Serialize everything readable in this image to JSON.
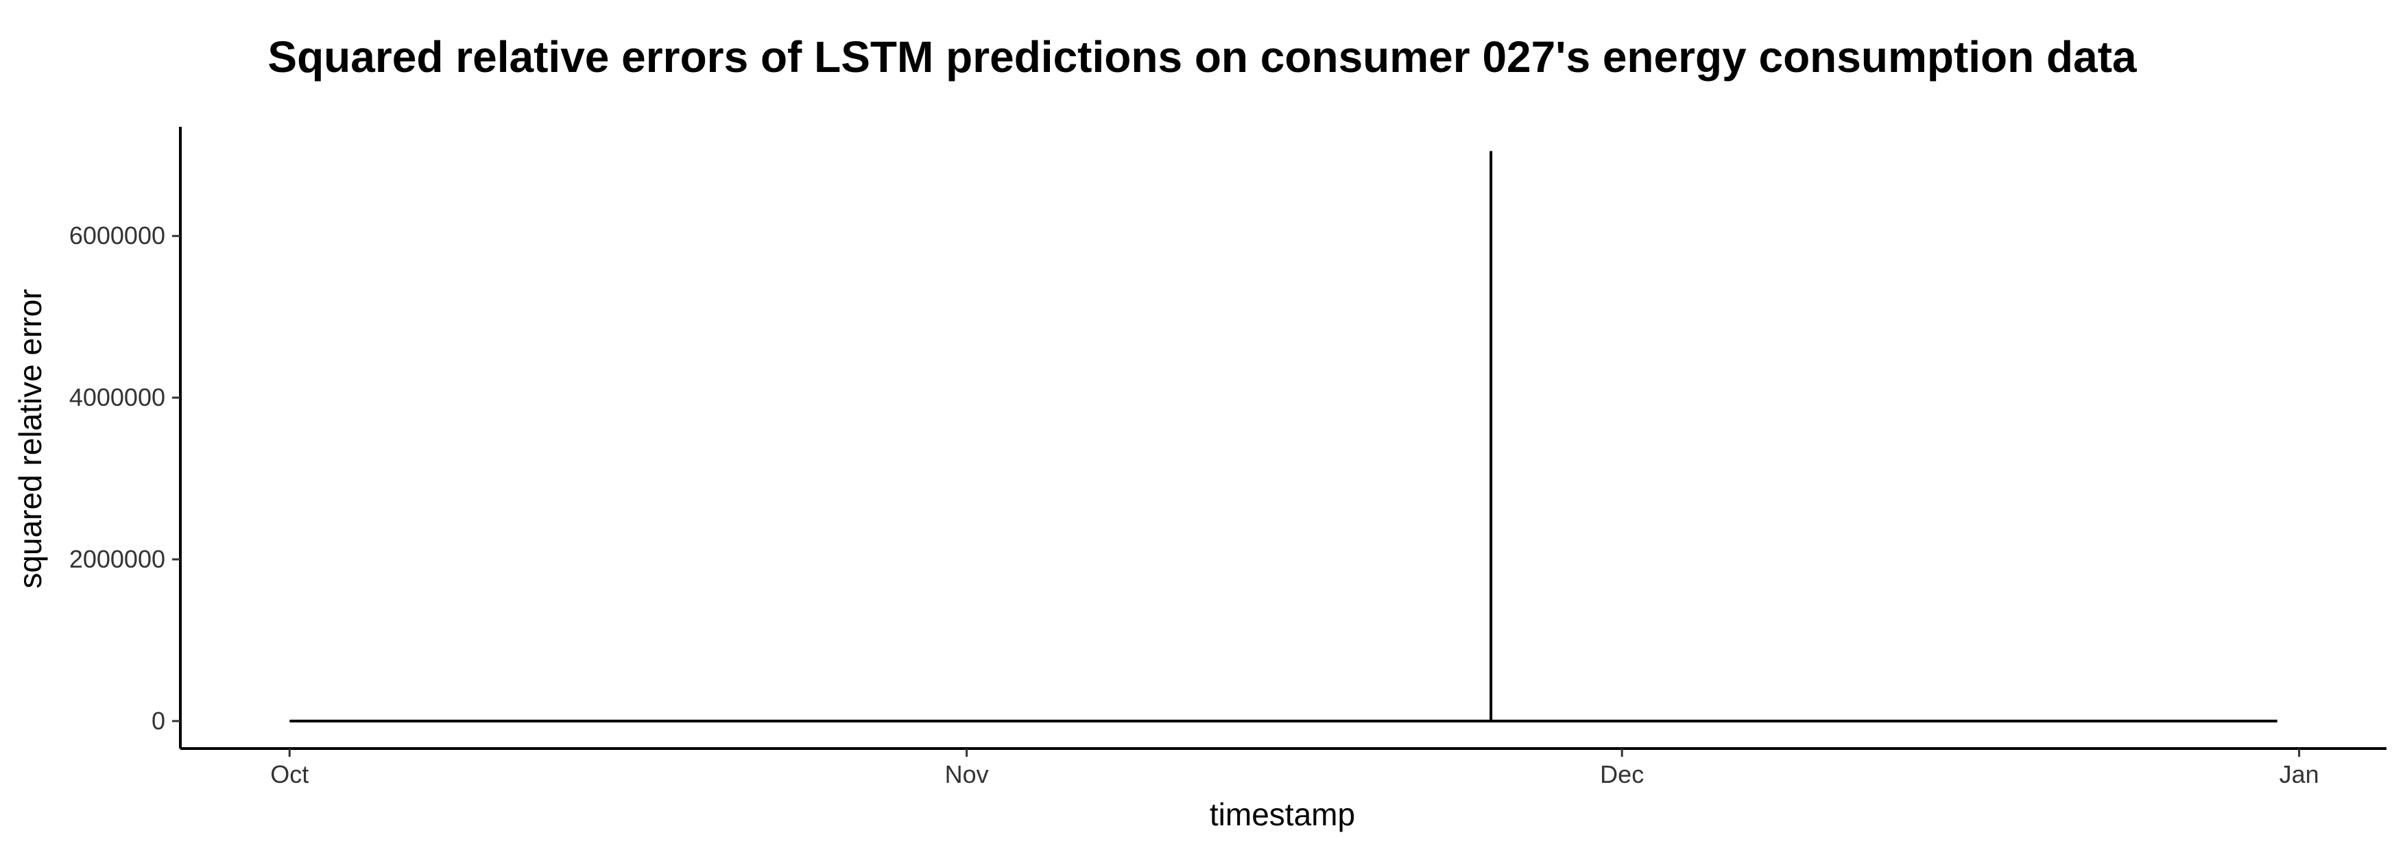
{
  "chart_data": {
    "type": "line",
    "title": "Squared relative errors of LSTM predictions on consumer 027's energy consumption data",
    "xlabel": "timestamp",
    "ylabel": "squared relative error",
    "x_ticks": [
      {
        "label": "Oct",
        "date": "2013-10-01"
      },
      {
        "label": "Nov",
        "date": "2013-11-01"
      },
      {
        "label": "Dec",
        "date": "2013-12-01"
      },
      {
        "label": "Jan",
        "date": "2014-01-01"
      }
    ],
    "y_ticks": [
      0,
      2000000,
      4000000,
      6000000
    ],
    "y_tick_labels": [
      "0",
      "2000000",
      "4000000",
      "6000000"
    ],
    "xlim": [
      "2013-09-26",
      "2014-01-05"
    ],
    "ylim": [
      -340000,
      7350000
    ],
    "grid": false,
    "legend": "none",
    "line_color": "#000000",
    "series": [
      {
        "points": [
          {
            "x": "2013-10-01",
            "y": 0
          },
          {
            "x": "2013-11-25",
            "y": 0
          },
          {
            "x": "2013-11-25",
            "y": 7050000
          },
          {
            "x": "2013-11-25",
            "y": 0
          },
          {
            "x": "2013-12-31",
            "y": 0
          }
        ]
      }
    ]
  }
}
